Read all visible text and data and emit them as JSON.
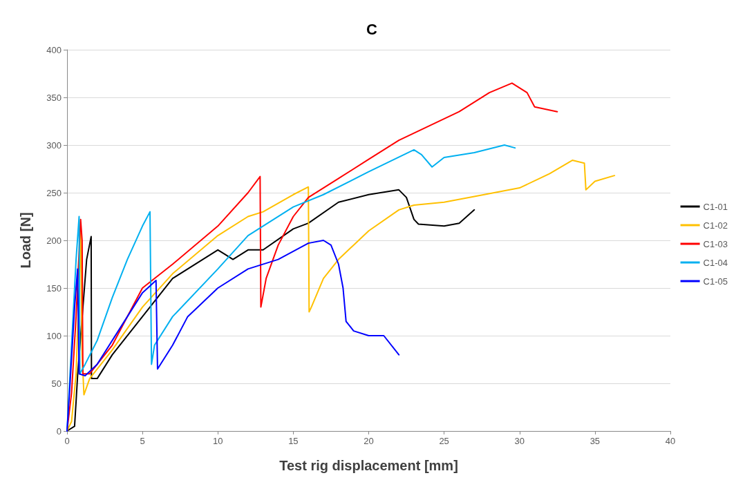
{
  "chart_data": {
    "type": "line",
    "title": "C",
    "xlabel": "Test rig displacement [mm]",
    "ylabel": "Load [N]",
    "xlim": [
      0,
      40
    ],
    "xticks": [
      0,
      5,
      10,
      15,
      20,
      25,
      30,
      35,
      40
    ],
    "ylim": [
      0,
      400
    ],
    "yticks": [
      0,
      50,
      100,
      150,
      200,
      250,
      300,
      350,
      400
    ],
    "grid": "y",
    "legend": "right",
    "marker": "none",
    "line_style": "solid",
    "series": [
      {
        "name": "C1-01",
        "color": "#000000",
        "x": [
          0,
          0.5,
          0.6,
          0.7,
          1.3,
          1.6,
          1.62,
          2,
          3,
          5,
          7,
          9,
          10,
          10.5,
          11,
          12,
          13,
          15,
          16,
          18,
          20,
          22,
          22.5,
          23,
          23.3,
          25,
          26,
          27
        ],
        "values": [
          0,
          5,
          31,
          58,
          180,
          204,
          55,
          55,
          80,
          120,
          160,
          180,
          190,
          185,
          180,
          190,
          190,
          212,
          218,
          240,
          248,
          253,
          245,
          222,
          217,
          215,
          218,
          232
        ]
      },
      {
        "name": "C1-02",
        "color": "#ffc000",
        "x": [
          0,
          0.3,
          0.6,
          0.8,
          0.9,
          1.0,
          1.12,
          1.5,
          3,
          5,
          7,
          10,
          12,
          13,
          15,
          16,
          16.05,
          16.2,
          17,
          18,
          20,
          22,
          23,
          25,
          27,
          30,
          32,
          33.5,
          34.3,
          34.4,
          35,
          36.3
        ],
        "values": [
          0,
          10,
          60,
          150,
          210,
          80,
          38,
          55,
          85,
          130,
          165,
          205,
          225,
          230,
          248,
          256,
          125,
          130,
          160,
          180,
          210,
          232,
          237,
          240,
          246,
          255,
          270,
          284,
          281,
          253,
          262,
          268
        ]
      },
      {
        "name": "C1-03",
        "color": "#ff0000",
        "x": [
          0,
          0.3,
          0.6,
          0.9,
          1.0,
          1.05,
          1.5,
          3,
          5,
          7,
          10,
          12,
          12.8,
          12.85,
          13.2,
          14,
          15,
          16,
          18,
          20,
          22,
          24,
          26,
          28,
          29.5,
          30.5,
          31,
          32.5
        ],
        "values": [
          0,
          40,
          120,
          222,
          200,
          60,
          60,
          90,
          150,
          175,
          215,
          250,
          267,
          130,
          160,
          195,
          225,
          245,
          265,
          285,
          305,
          320,
          335,
          355,
          365,
          355,
          340,
          335
        ]
      },
      {
        "name": "C1-04",
        "color": "#00b0f0",
        "x": [
          0,
          0.1,
          0.3,
          0.6,
          0.8,
          0.85,
          1.2,
          2,
          3,
          4,
          5,
          5.5,
          5.6,
          5.8,
          7,
          10,
          12,
          15,
          17,
          20,
          23,
          23.5,
          24.2,
          25,
          27,
          29,
          29.7
        ],
        "values": [
          0,
          30,
          90,
          180,
          225,
          60,
          70,
          95,
          140,
          180,
          215,
          230,
          70,
          90,
          120,
          170,
          205,
          235,
          248,
          272,
          295,
          290,
          277,
          287,
          292,
          300,
          297
        ]
      },
      {
        "name": "C1-05",
        "color": "#0000ff",
        "x": [
          0,
          0.2,
          0.5,
          0.7,
          0.8,
          1.2,
          2,
          3,
          5,
          5.9,
          6,
          7,
          8,
          10,
          12,
          14,
          16,
          17,
          17.5,
          18,
          18.3,
          18.5,
          19,
          20,
          21,
          22
        ],
        "values": [
          0,
          50,
          130,
          170,
          60,
          58,
          70,
          95,
          145,
          158,
          65,
          90,
          120,
          150,
          170,
          180,
          197,
          200,
          195,
          175,
          150,
          115,
          105,
          100,
          100,
          80
        ]
      }
    ]
  }
}
